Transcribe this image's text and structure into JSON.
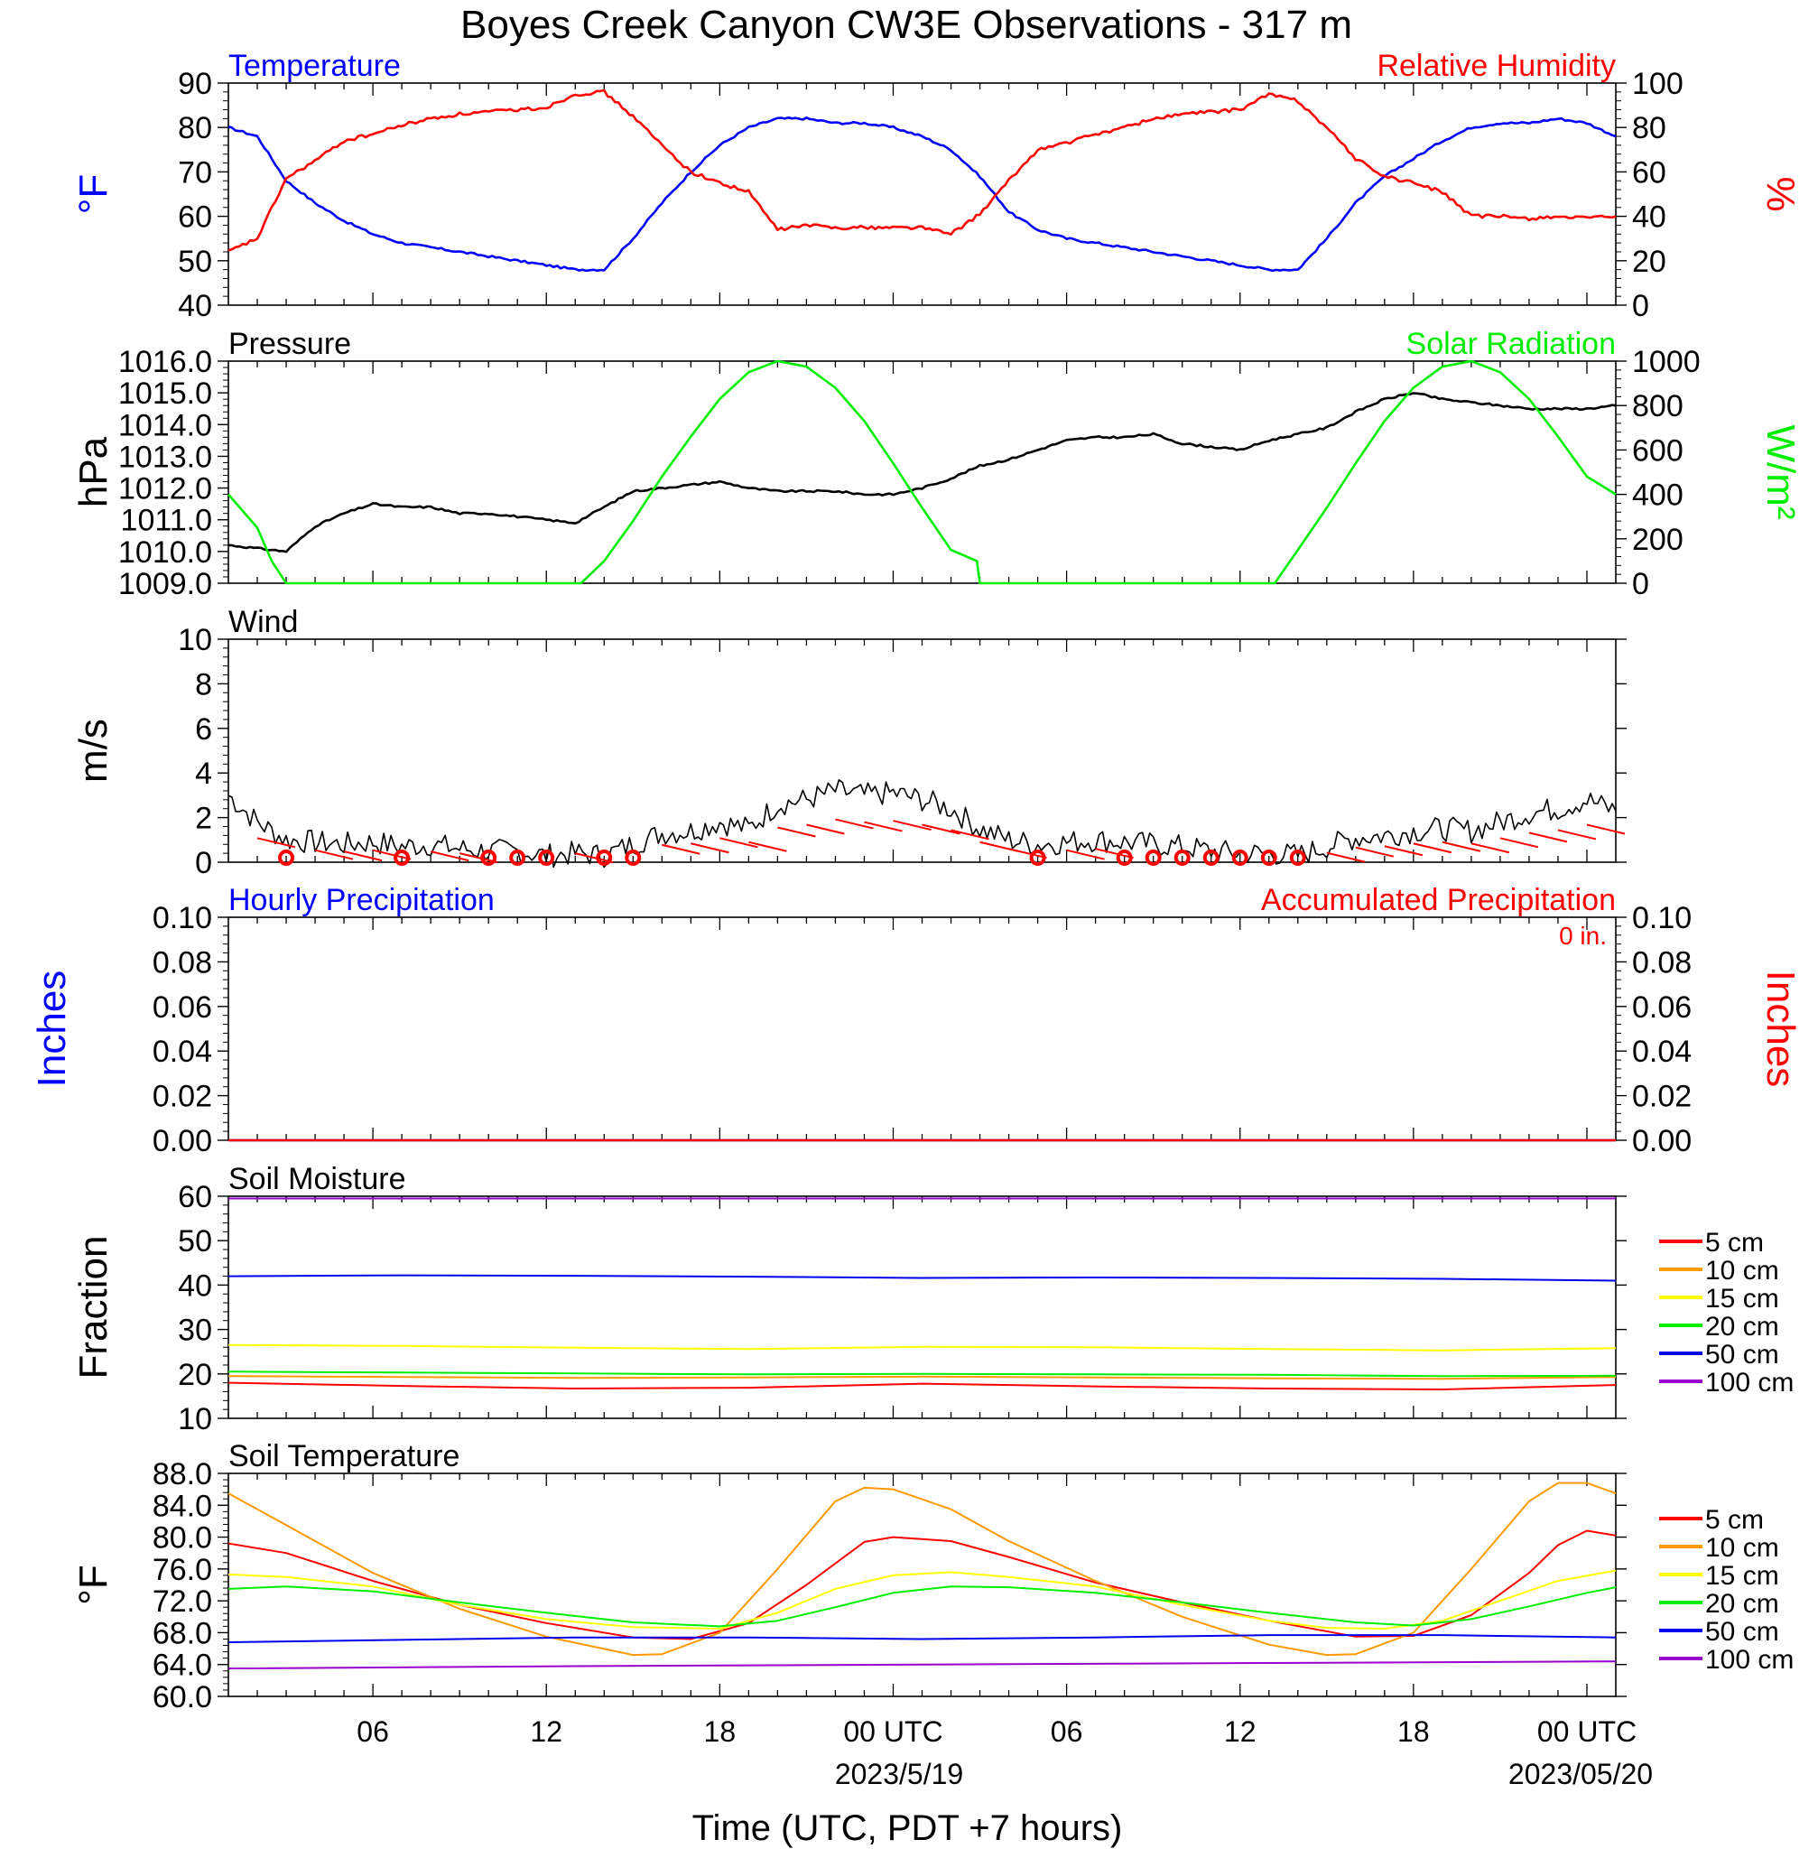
{
  "page": {
    "title": "Boyes Creek Canyon CW3E Observations - 317 m",
    "xlabel": "Time (UTC, PDT +7 hours)",
    "x_ticks": [
      "06",
      "12",
      "18",
      "00 UTC",
      "06",
      "12",
      "18",
      "00 UTC"
    ],
    "x_tick_hours": [
      6,
      12,
      18,
      24,
      30,
      36,
      42,
      48
    ],
    "date_labels": [
      "2023/5/19",
      "2023/05/20"
    ],
    "x_range_hours": [
      1,
      49
    ]
  },
  "colors": {
    "temperature": "#0000ff",
    "humidity": "#ff0000",
    "pressure": "#000000",
    "solar": "#00ee00",
    "wind": "#000000",
    "wind_barb": "#ff0000",
    "soil_5": "#ff0000",
    "soil_10": "#ff9900",
    "soil_15": "#ffff00",
    "soil_20": "#00ee00",
    "soil_50": "#0000ee",
    "soil_100": "#9900cc"
  },
  "chart_data": [
    {
      "type": "line",
      "panel": "temp_rh",
      "title_left": "Temperature",
      "title_right": "Relative Humidity",
      "ylabel_left": "°F",
      "ylabel_right": "%",
      "ylim_left": [
        40,
        90
      ],
      "ylim_right": [
        0,
        100
      ],
      "yticks_left": [
        "90",
        "80",
        "70",
        "60",
        "50",
        "40"
      ],
      "yticks_right": [
        "100",
        "80",
        "60",
        "40",
        "20",
        "0"
      ],
      "series": [
        {
          "name": "Temperature",
          "axis": "left",
          "x": [
            1,
            2,
            3,
            4,
            5,
            6,
            7,
            8,
            9,
            10,
            11,
            12,
            13,
            14,
            15,
            16,
            17,
            18,
            19,
            20,
            21,
            22,
            23,
            24,
            25,
            26,
            27,
            28,
            29,
            30,
            31,
            32,
            33,
            34,
            35,
            36,
            37,
            38,
            39,
            40,
            41,
            42,
            43,
            44,
            45,
            46,
            47,
            48,
            49
          ],
          "y": [
            80,
            78,
            68,
            63,
            59,
            56,
            54,
            53,
            52,
            51,
            50,
            49,
            48,
            48,
            55,
            63,
            70,
            76,
            80,
            82,
            82,
            81,
            81,
            80,
            78,
            75,
            69,
            61,
            57,
            55,
            54,
            53,
            52,
            51,
            50,
            49,
            48,
            48,
            55,
            63,
            69,
            73,
            77,
            80,
            81,
            81,
            82,
            81,
            78
          ]
        },
        {
          "name": "Relative Humidity",
          "axis": "right",
          "x": [
            1,
            2,
            3,
            4,
            5,
            6,
            7,
            8,
            9,
            10,
            11,
            12,
            13,
            14,
            15,
            16,
            17,
            18,
            19,
            20,
            21,
            22,
            23,
            24,
            25,
            26,
            27,
            28,
            29,
            30,
            31,
            32,
            33,
            34,
            35,
            36,
            37,
            38,
            39,
            40,
            41,
            42,
            43,
            44,
            45,
            46,
            47,
            48,
            49
          ],
          "y": [
            24,
            30,
            57,
            65,
            74,
            77,
            81,
            84,
            86,
            87,
            88,
            89,
            95,
            96,
            85,
            72,
            60,
            55,
            51,
            34,
            36,
            35,
            35,
            35,
            35,
            32,
            41,
            56,
            70,
            73,
            77,
            80,
            84,
            86,
            87,
            88,
            95,
            92,
            80,
            66,
            58,
            55,
            51,
            40,
            40,
            39,
            40,
            39,
            40
          ]
        }
      ]
    },
    {
      "type": "line",
      "panel": "pressure_solar",
      "title_left": "Pressure",
      "title_right": "Solar Radiation",
      "ylabel_left": "hPa",
      "ylabel_right": "W/m²",
      "ylim_left": [
        1009,
        1016
      ],
      "ylim_right": [
        0,
        1000
      ],
      "yticks_left": [
        "1016.0",
        "1015.0",
        "1014.0",
        "1013.0",
        "1012.0",
        "1011.0",
        "1010.0",
        "1009.0"
      ],
      "yticks_right": [
        "1000",
        "800",
        "600",
        "400",
        "200",
        "0"
      ],
      "series": [
        {
          "name": "Pressure",
          "axis": "left",
          "x": [
            1,
            2,
            3,
            4,
            5,
            6,
            7,
            8,
            9,
            10,
            11,
            12,
            13,
            14,
            15,
            16,
            17,
            18,
            19,
            20,
            21,
            22,
            23,
            24,
            25,
            26,
            27,
            28,
            29,
            30,
            31,
            32,
            33,
            34,
            35,
            36,
            37,
            38,
            39,
            40,
            41,
            42,
            43,
            44,
            45,
            46,
            47,
            48,
            49
          ],
          "y": [
            1010.2,
            1010.1,
            1010.0,
            1010.8,
            1011.2,
            1011.5,
            1011.4,
            1011.4,
            1011.2,
            1011.2,
            1011.1,
            1011.0,
            1010.9,
            1011.4,
            1011.9,
            1012.0,
            1012.1,
            1012.2,
            1012.0,
            1011.9,
            1011.9,
            1011.9,
            1011.8,
            1011.8,
            1012.0,
            1012.3,
            1012.7,
            1012.9,
            1013.2,
            1013.5,
            1013.6,
            1013.6,
            1013.7,
            1013.4,
            1013.3,
            1013.2,
            1013.5,
            1013.7,
            1013.9,
            1014.4,
            1014.8,
            1015.0,
            1014.8,
            1014.7,
            1014.6,
            1014.5,
            1014.5,
            1014.5,
            1014.6
          ]
        },
        {
          "name": "Solar Radiation",
          "axis": "right",
          "x": [
            1,
            2,
            2.5,
            3,
            4,
            12,
            13.2,
            14,
            15,
            16,
            17,
            18,
            19,
            20,
            21,
            22,
            23,
            24,
            25,
            26,
            26.9,
            27,
            28,
            37.2,
            38,
            39,
            40,
            41,
            42,
            43,
            44,
            45,
            46,
            47,
            48,
            49
          ],
          "y": [
            400,
            250,
            100,
            0,
            0,
            0,
            0,
            100,
            280,
            480,
            660,
            830,
            950,
            1000,
            975,
            880,
            730,
            540,
            340,
            150,
            100,
            0,
            0,
            0,
            150,
            340,
            540,
            730,
            880,
            975,
            1000,
            950,
            830,
            660,
            480,
            400
          ]
        }
      ]
    },
    {
      "type": "line",
      "panel": "wind",
      "title_left": "Wind",
      "ylabel_left": "m/s",
      "ylim_left": [
        0,
        10
      ],
      "yticks_left": [
        "10",
        "8",
        "6",
        "4",
        "2",
        "0"
      ],
      "series": [
        {
          "name": "Wind",
          "axis": "left",
          "x": [
            1,
            2,
            3,
            4,
            5,
            6,
            7,
            8,
            9,
            10,
            11,
            12,
            13,
            14,
            15,
            16,
            17,
            18,
            19,
            20,
            21,
            22,
            23,
            24,
            25,
            26,
            27,
            28,
            29,
            30,
            31,
            32,
            33,
            34,
            35,
            36,
            37,
            38,
            39,
            40,
            41,
            42,
            43,
            44,
            45,
            46,
            47,
            48,
            49
          ],
          "y": [
            3.0,
            1.8,
            1.0,
            0.9,
            0.8,
            0.9,
            0.7,
            0.8,
            0.6,
            0.5,
            0.5,
            0.3,
            0.4,
            0.3,
            0.8,
            1.3,
            1.4,
            1.8,
            1.5,
            2.6,
            2.8,
            3.2,
            3.0,
            3.1,
            2.8,
            2.4,
            1.5,
            1.0,
            0.8,
            0.9,
            1.0,
            0.9,
            0.8,
            0.7,
            0.5,
            0.4,
            0.4,
            0.3,
            0.7,
            1.1,
            1.2,
            1.4,
            1.5,
            1.4,
            1.8,
            2.2,
            2.4,
            2.8,
            2.3
          ]
        }
      ],
      "calm_markers_hours": [
        3,
        7,
        10,
        11,
        12,
        14,
        15,
        29,
        32,
        33,
        34,
        35,
        36,
        37,
        38
      ]
    },
    {
      "type": "bar",
      "panel": "precip",
      "title_left": "Hourly Precipitation",
      "title_right": "Accumulated Precipitation",
      "accumulated_label": "0 in.",
      "ylabel_left": "Inches",
      "ylabel_right": "Inches",
      "ylim_left": [
        0,
        0.1
      ],
      "ylim_right": [
        0,
        0.1
      ],
      "yticks_left": [
        "0.10",
        "0.08",
        "0.06",
        "0.04",
        "0.02",
        "0.00"
      ],
      "yticks_right": [
        "0.10",
        "0.08",
        "0.06",
        "0.04",
        "0.02",
        "0.00"
      ],
      "series": [
        {
          "name": "Hourly Precipitation",
          "axis": "left",
          "x": [
            1,
            49
          ],
          "y": [
            0,
            0
          ]
        },
        {
          "name": "Accumulated Precipitation",
          "axis": "right",
          "x": [
            1,
            49
          ],
          "y": [
            0,
            0
          ]
        }
      ]
    },
    {
      "type": "line",
      "panel": "soil_moisture",
      "title_left": "Soil Moisture",
      "ylabel_left": "Fraction",
      "ylim_left": [
        10,
        60
      ],
      "yticks_left": [
        "60",
        "50",
        "40",
        "30",
        "20",
        "10"
      ],
      "legend": [
        "5 cm",
        "10 cm",
        "15 cm",
        "20 cm",
        "50 cm",
        "100 cm"
      ],
      "series": [
        {
          "name": "5 cm",
          "x": [
            1,
            7,
            13,
            19,
            25,
            31,
            37,
            43,
            49
          ],
          "y": [
            18.0,
            17.3,
            16.7,
            16.9,
            17.8,
            17.2,
            16.7,
            16.5,
            17.5
          ]
        },
        {
          "name": "10 cm",
          "x": [
            1,
            7,
            13,
            19,
            25,
            31,
            37,
            43,
            49
          ],
          "y": [
            19.5,
            19.3,
            19.1,
            19.2,
            19.4,
            19.2,
            19.0,
            18.9,
            19.3
          ]
        },
        {
          "name": "15 cm",
          "x": [
            1,
            7,
            13,
            19,
            25,
            31,
            37,
            43,
            49
          ],
          "y": [
            26.5,
            26.3,
            25.9,
            25.6,
            26.1,
            26.0,
            25.6,
            25.3,
            25.8
          ]
        },
        {
          "name": "20 cm",
          "x": [
            1,
            7,
            13,
            19,
            25,
            31,
            37,
            43,
            49
          ],
          "y": [
            20.5,
            20.3,
            20.1,
            19.9,
            20.0,
            19.9,
            19.8,
            19.5,
            19.6
          ]
        },
        {
          "name": "50 cm",
          "x": [
            1,
            7,
            13,
            19,
            25,
            31,
            37,
            43,
            49
          ],
          "y": [
            42.0,
            42.2,
            42.1,
            41.9,
            41.6,
            41.7,
            41.6,
            41.4,
            41.0
          ]
        },
        {
          "name": "100 cm",
          "x": [
            1,
            49
          ],
          "y": [
            59.5,
            59.5
          ]
        }
      ]
    },
    {
      "type": "line",
      "panel": "soil_temperature",
      "title_left": "Soil Temperature",
      "ylabel_left": "°F",
      "ylim_left": [
        60,
        88
      ],
      "yticks_left": [
        "88.0",
        "84.0",
        "80.0",
        "76.0",
        "72.0",
        "68.0",
        "64.0",
        "60.0"
      ],
      "legend": [
        "5 cm",
        "10 cm",
        "15 cm",
        "20 cm",
        "50 cm",
        "100 cm"
      ],
      "series": [
        {
          "name": "5 cm",
          "x": [
            1,
            3,
            6,
            9,
            12,
            15,
            17,
            19,
            21,
            23,
            24,
            26,
            28,
            31,
            34,
            37,
            40,
            42,
            44,
            46,
            47,
            48,
            49
          ],
          "y": [
            79.2,
            78,
            74.5,
            71.5,
            69.2,
            67.4,
            67.2,
            69.2,
            74,
            79.4,
            80.0,
            79.5,
            77.5,
            74.3,
            71.8,
            69.5,
            67.5,
            67.6,
            70.2,
            75.5,
            79,
            80.8,
            80.2
          ]
        },
        {
          "name": "10 cm",
          "x": [
            1,
            3,
            6,
            9,
            12,
            15,
            16,
            18,
            20,
            22,
            23,
            24,
            26,
            28,
            31,
            34,
            37,
            39,
            40,
            42,
            44,
            46,
            47,
            48,
            49
          ],
          "y": [
            85.5,
            81.5,
            75.5,
            71,
            67.5,
            65.2,
            65.3,
            68,
            76,
            84.5,
            86.2,
            86.0,
            83.5,
            79.5,
            74.5,
            70,
            66.5,
            65.2,
            65.3,
            68,
            76,
            84.5,
            86.8,
            86.8,
            85.5
          ]
        },
        {
          "name": "15 cm",
          "x": [
            1,
            3,
            6,
            9,
            12,
            15,
            18,
            20,
            22,
            24,
            26,
            28,
            31,
            34,
            37,
            39,
            41,
            43,
            45,
            47,
            49
          ],
          "y": [
            75.3,
            75,
            73.8,
            71.5,
            69.7,
            68.7,
            68.5,
            70.5,
            73.5,
            75.2,
            75.6,
            75.0,
            73.8,
            71.5,
            69.5,
            68.6,
            68.5,
            69.5,
            72,
            74.5,
            75.8
          ]
        },
        {
          "name": "20 cm",
          "x": [
            1,
            3,
            6,
            9,
            12,
            15,
            18,
            20,
            22,
            24,
            26,
            28,
            31,
            34,
            37,
            40,
            42,
            44,
            46,
            48,
            49
          ],
          "y": [
            73.5,
            73.8,
            73.2,
            71.8,
            70.5,
            69.3,
            68.8,
            69.5,
            71.2,
            73.0,
            73.8,
            73.7,
            73.0,
            71.8,
            70.5,
            69.3,
            68.9,
            69.7,
            71.3,
            73.0,
            73.7
          ]
        },
        {
          "name": "50 cm",
          "x": [
            1,
            7,
            13,
            19,
            25,
            31,
            37,
            43,
            49
          ],
          "y": [
            66.8,
            67.1,
            67.4,
            67.4,
            67.2,
            67.4,
            67.7,
            67.7,
            67.4
          ]
        },
        {
          "name": "100 cm",
          "x": [
            1,
            13,
            25,
            37,
            49
          ],
          "y": [
            63.5,
            63.8,
            64.0,
            64.2,
            64.4
          ]
        }
      ]
    }
  ]
}
